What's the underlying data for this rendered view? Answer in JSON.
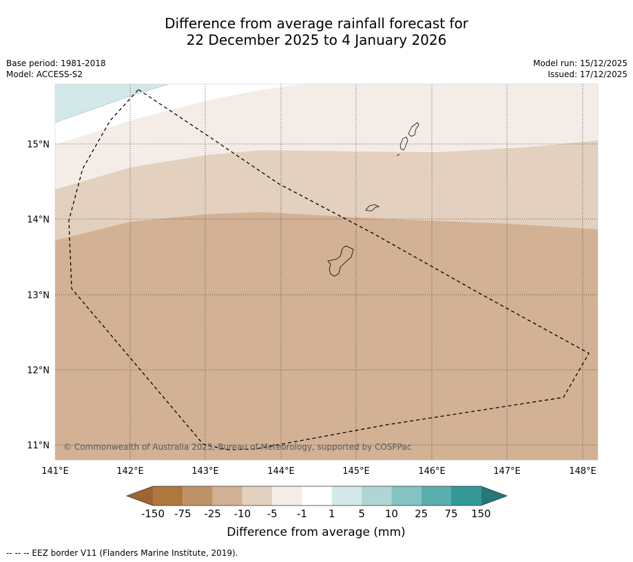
{
  "title": {
    "line1": "Difference from average rainfall forecast for",
    "line2": "22 December 2025 to 4 January 2026"
  },
  "meta": {
    "base_period": "Base period: 1981-2018",
    "model": "Model: ACCESS-S2",
    "model_run": "Model run: 15/12/2025",
    "issued": "Issued: 17/12/2025"
  },
  "map": {
    "lon_labels": [
      "141°E",
      "142°E",
      "143°E",
      "144°E",
      "145°E",
      "146°E",
      "147°E",
      "148°E"
    ],
    "lat_labels": [
      "15°N",
      "14°N",
      "13°N",
      "12°N",
      "11°N"
    ],
    "copyright": "© Commonwealth of Australia 2025, Bureau of Meteorology, supported by COSPPac",
    "colors": {
      "lt_neg150": "#9c6532",
      "neg150_neg75": "#ad773e",
      "neg75_neg25": "#c09366",
      "neg25_neg10": "#d2b194",
      "neg10_neg5": "#e3d0bf",
      "neg5_neg1": "#f4ede7",
      "neg1_1": "#ffffff",
      "p1_5": "#d3e8e8",
      "p5_10": "#b0d5d4",
      "p10_25": "#85c2c2",
      "p25_75": "#5aaeae",
      "p75_150": "#339999",
      "gt_150": "#267777"
    }
  },
  "colorbar": {
    "ticks": [
      "-150",
      "-75",
      "-25",
      "-10",
      "-5",
      "-1",
      "1",
      "5",
      "10",
      "25",
      "75",
      "150"
    ],
    "label": "Difference from average (mm)"
  },
  "footer": "--  --  -- EEZ border V11 (Flanders Marine Institute, 2019)."
}
